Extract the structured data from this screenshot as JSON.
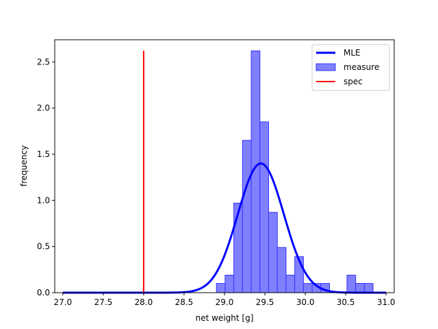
{
  "chart_data": {
    "type": "histogram",
    "xlabel": "net weight [g]",
    "ylabel": "frequency",
    "xlim": [
      26.9,
      31.1
    ],
    "ylim": [
      0,
      2.74
    ],
    "xticks": [
      27.0,
      27.5,
      28.0,
      28.5,
      29.0,
      29.5,
      30.0,
      30.5,
      31.0
    ],
    "xtick_labels": [
      "27.0",
      "27.5",
      "28.0",
      "28.5",
      "29.0",
      "29.5",
      "30.0",
      "30.5",
      "31.0"
    ],
    "yticks": [
      0.0,
      0.5,
      1.0,
      1.5,
      2.0,
      2.5
    ],
    "ytick_labels": [
      "0.0",
      "0.5",
      "1.0",
      "1.5",
      "2.0",
      "2.5"
    ],
    "grid": false,
    "legend_position": "top-right",
    "bins": {
      "start": 28.9,
      "width": 0.1077,
      "heights": [
        0.1,
        0.19,
        0.97,
        1.65,
        2.62,
        1.85,
        0.87,
        0.49,
        0.19,
        0.39,
        0.1,
        0.1,
        0.1,
        0.0,
        0.0,
        0.19,
        0.1,
        0.1
      ]
    },
    "spec_x": 28.0,
    "spec_ymax": 2.62,
    "mle": {
      "mean": 29.45,
      "std": 0.285,
      "x_range": [
        27.0,
        31.0
      ]
    },
    "colors": {
      "mle": "#0000ff",
      "measure_fill": "#8080ff",
      "measure_edge": "#3333ff",
      "spec": "#ff0000"
    },
    "legend": [
      {
        "label": "MLE",
        "kind": "line",
        "color": "#0000ff"
      },
      {
        "label": "measure",
        "kind": "patch",
        "color": "#8080ff"
      },
      {
        "label": "spec",
        "kind": "line",
        "color": "#ff0000"
      }
    ]
  }
}
